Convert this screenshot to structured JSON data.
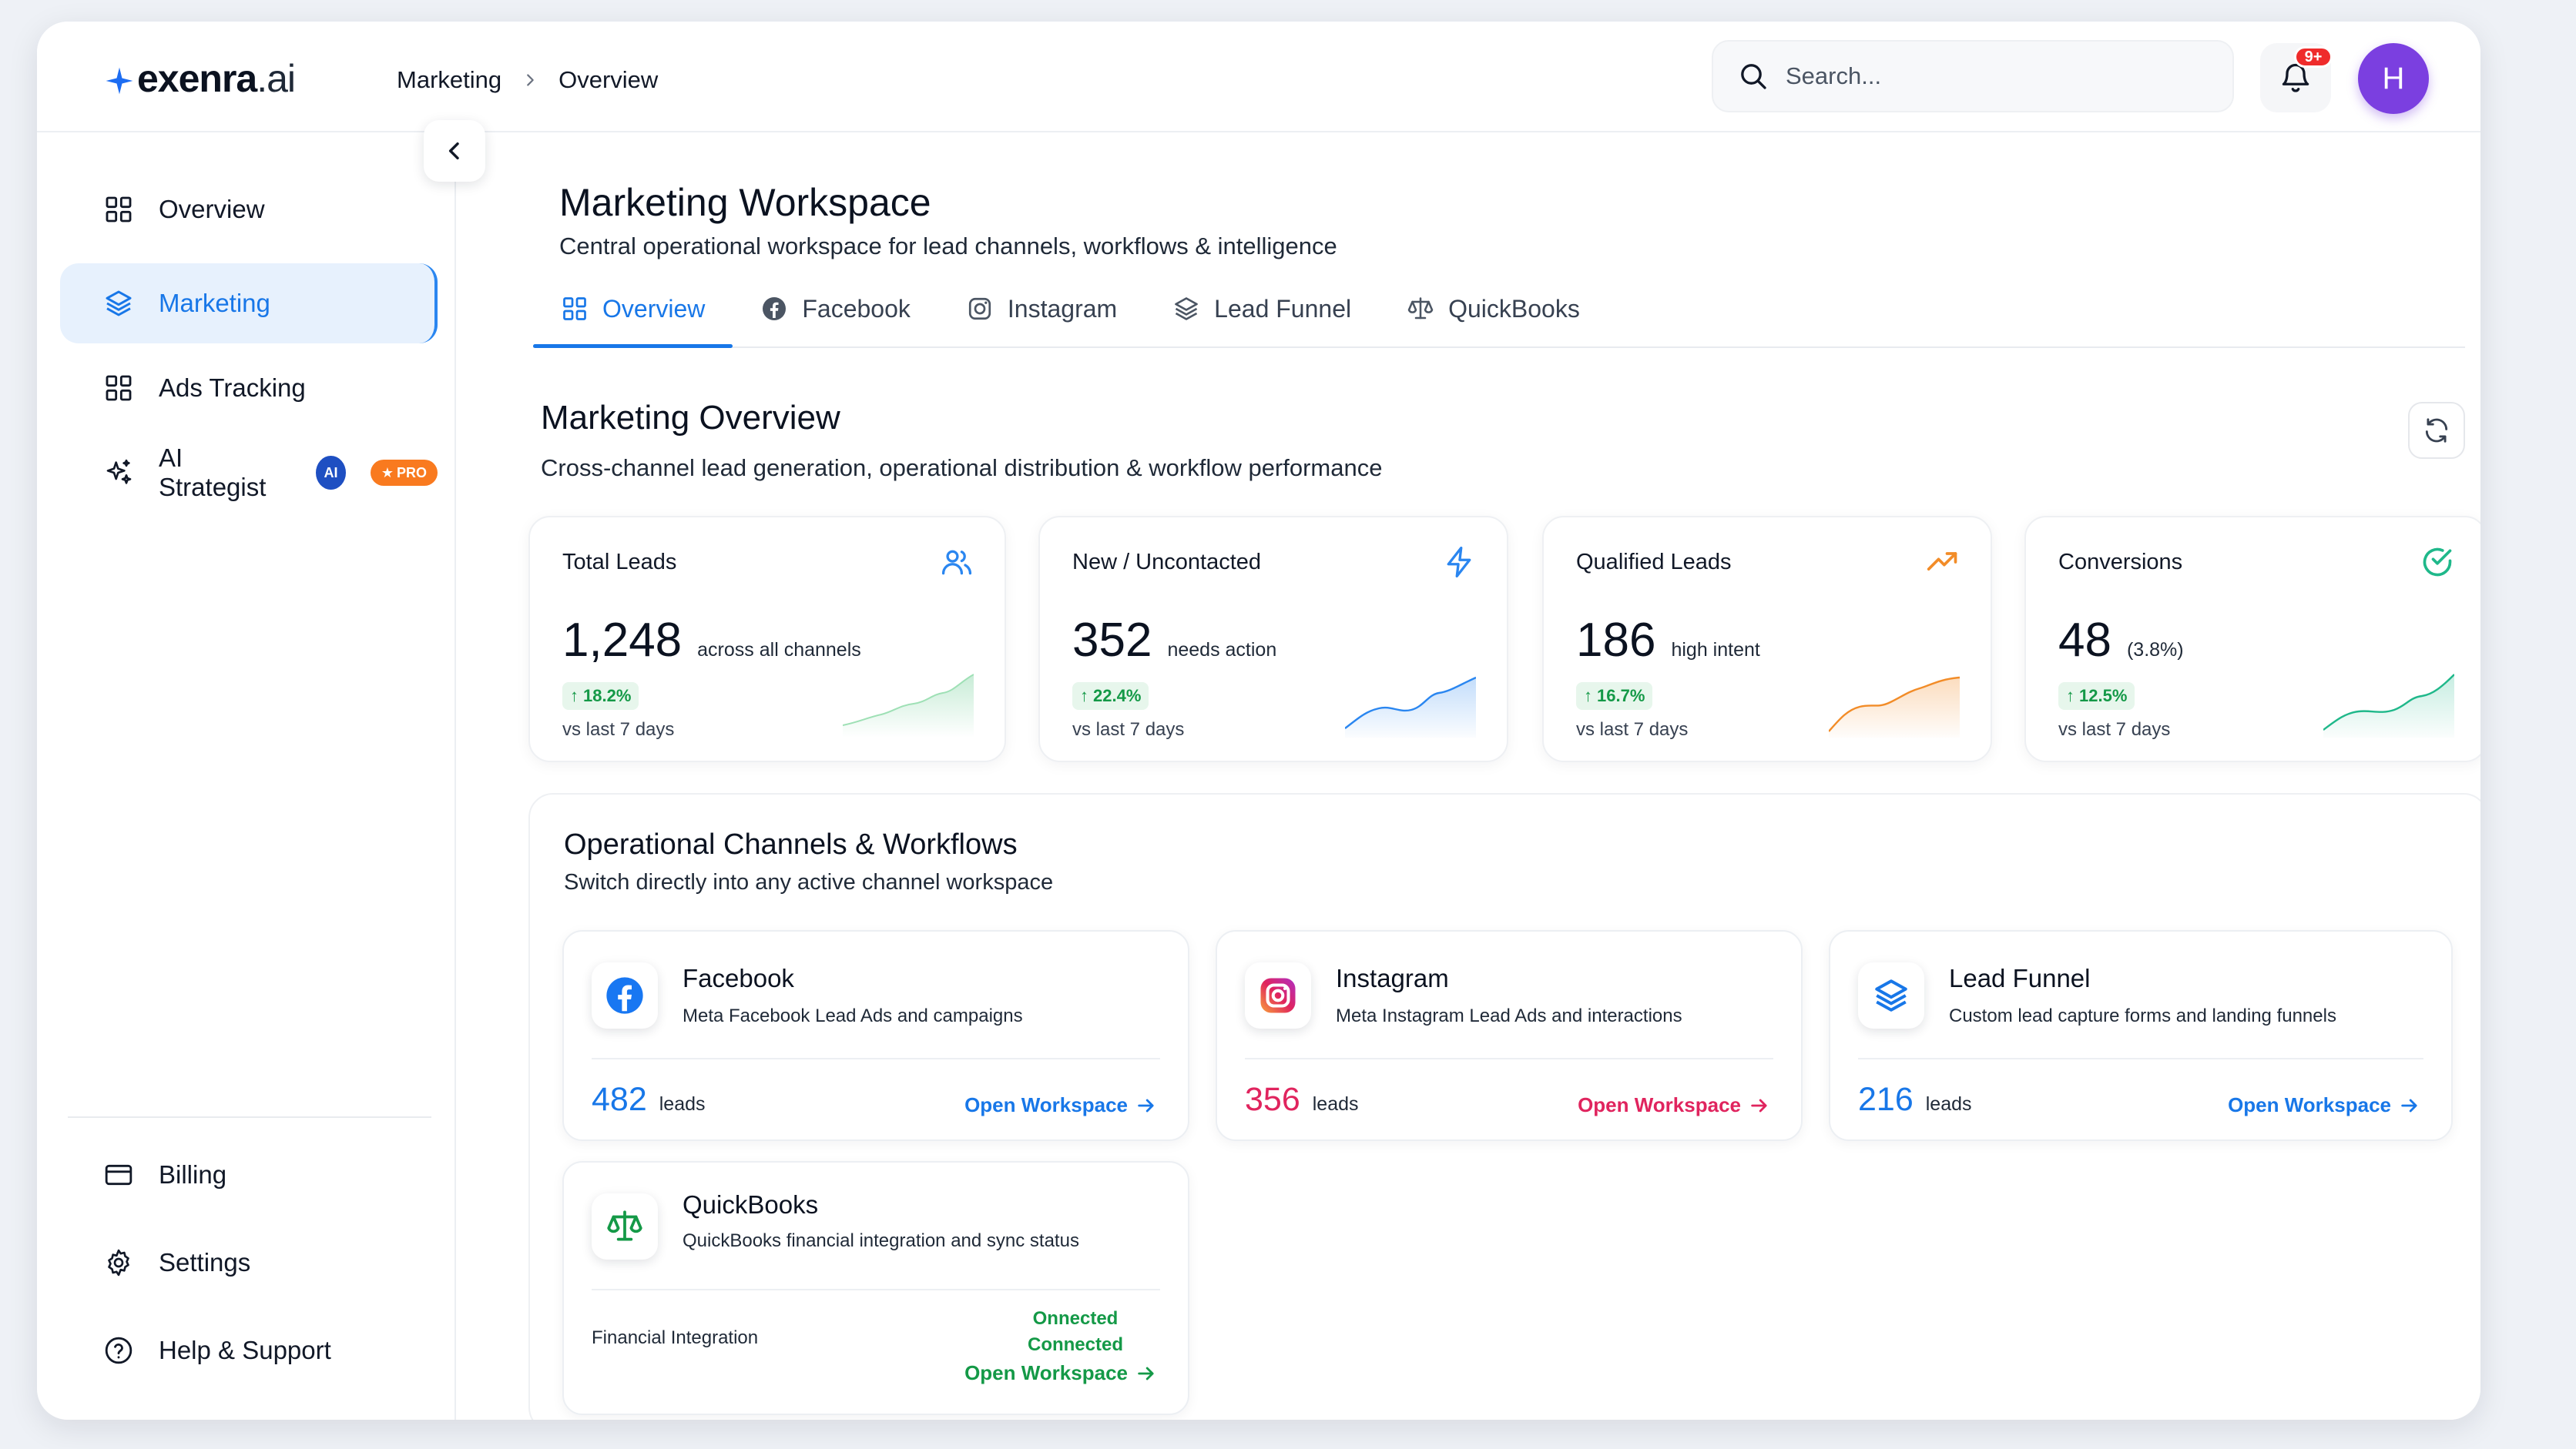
{
  "app": {
    "logo_main": "exenra",
    "logo_suffix": ".ai"
  },
  "header": {
    "breadcrumb": [
      "Marketing",
      "Overview"
    ],
    "search_placeholder": "Search...",
    "notification_badge": "9+",
    "avatar_initial": "H"
  },
  "sidebar": {
    "items": [
      {
        "label": "Overview",
        "icon": "grid-icon"
      },
      {
        "label": "Marketing",
        "icon": "layers-icon",
        "active": true
      },
      {
        "label": "Ads Tracking",
        "icon": "grid-icon"
      },
      {
        "label": "AI Strategist",
        "icon": "sparkles-icon",
        "badge_ai": "AI",
        "badge_pro": "PRO"
      }
    ],
    "bottom_items": [
      {
        "label": "Billing",
        "icon": "credit-card-icon"
      },
      {
        "label": "Settings",
        "icon": "gear-icon"
      },
      {
        "label": "Help & Support",
        "icon": "help-circle-icon"
      }
    ]
  },
  "workspace": {
    "title": "Marketing Workspace",
    "subtitle": "Central operational workspace for lead channels, workflows & intelligence",
    "tabs": [
      {
        "label": "Overview",
        "icon": "grid-icon",
        "active": true
      },
      {
        "label": "Facebook",
        "icon": "facebook-icon"
      },
      {
        "label": "Instagram",
        "icon": "instagram-icon"
      },
      {
        "label": "Lead Funnel",
        "icon": "layers-icon"
      },
      {
        "label": "QuickBooks",
        "icon": "scale-icon"
      }
    ]
  },
  "overview": {
    "title": "Marketing Overview",
    "subtitle": "Cross-channel lead generation, operational distribution & workflow performance",
    "stats": [
      {
        "label": "Total Leads",
        "value": "1,248",
        "qualifier": "across all channels",
        "delta": "18.2%",
        "vs": "vs last 7 days",
        "icon": "users-icon",
        "color": "#2a86f0"
      },
      {
        "label": "New / Uncontacted",
        "value": "352",
        "qualifier": "needs action",
        "delta": "22.4%",
        "vs": "vs last 7 days",
        "icon": "bolt-icon",
        "color": "#2a86f0"
      },
      {
        "label": "Qualified Leads",
        "value": "186",
        "qualifier": "high intent",
        "delta": "16.7%",
        "vs": "vs last 7 days",
        "icon": "trend-up-icon",
        "color": "#f28c28"
      },
      {
        "label": "Conversions",
        "value": "48",
        "qualifier": "(3.8%)",
        "delta": "12.5%",
        "vs": "vs last 7 days",
        "icon": "check-circle-icon",
        "color": "#1fb88a"
      }
    ]
  },
  "channels": {
    "title": "Operational Channels & Workflows",
    "subtitle": "Switch directly into any active channel workspace",
    "cards": [
      {
        "name": "Facebook",
        "desc": "Meta Facebook Lead Ads and campaigns",
        "count": "482",
        "unit": "leads",
        "open": "Open Workspace",
        "color": "#1877e8",
        "icon": "facebook-icon"
      },
      {
        "name": "Instagram",
        "desc": "Meta Instagram Lead Ads and interactions",
        "count": "356",
        "unit": "leads",
        "open": "Open Workspace",
        "color": "#e0245e",
        "icon": "instagram-icon"
      },
      {
        "name": "Lead Funnel",
        "desc": "Custom lead capture forms and landing funnels",
        "count": "216",
        "unit": "leads",
        "open": "Open Workspace",
        "color": "#1877e8",
        "icon": "layers-icon"
      }
    ],
    "quickbooks": {
      "name": "QuickBooks",
      "desc": "QuickBooks financial integration and sync status",
      "label": "Financial Integration",
      "status_line1": "Onnected",
      "status_line2": "Connected",
      "open": "Open Workspace",
      "color": "#149947",
      "icon": "scale-icon"
    }
  }
}
